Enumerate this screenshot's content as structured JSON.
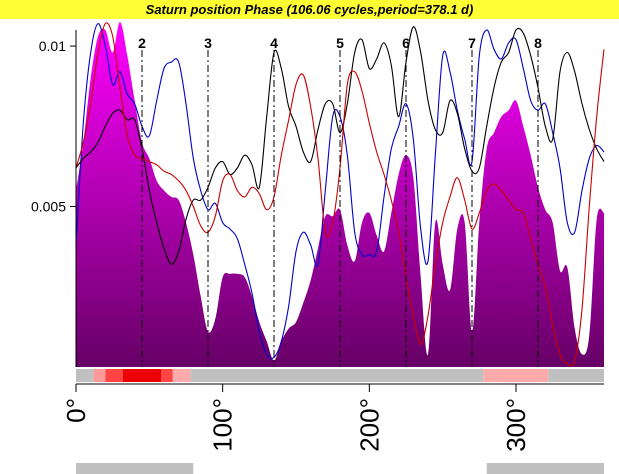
{
  "chart_data": {
    "type": "area",
    "title": "Saturn position  Phase  (106.06 cycles,period=378.1 d)",
    "xlabel": "",
    "ylabel": "",
    "xlim": [
      0,
      360
    ],
    "ylim": [
      0,
      0.0105
    ],
    "yticks": [
      {
        "value": 0.005,
        "label": "0.005"
      },
      {
        "value": 0.01,
        "label": "0.01"
      }
    ],
    "xticks": [
      {
        "value": 0,
        "label": "0°"
      },
      {
        "value": 100,
        "label": "100°"
      },
      {
        "value": 200,
        "label": "200°"
      },
      {
        "value": 300,
        "label": "300°"
      }
    ],
    "markers": [
      {
        "label": "2",
        "x": 45
      },
      {
        "label": "3",
        "x": 90
      },
      {
        "label": "4",
        "x": 135
      },
      {
        "label": "5",
        "x": 180
      },
      {
        "label": "6",
        "x": 225
      },
      {
        "label": "7",
        "x": 270
      },
      {
        "label": "8",
        "x": 315
      }
    ],
    "x": [
      0,
      5,
      10,
      15,
      20,
      25,
      30,
      35,
      40,
      45,
      50,
      55,
      60,
      65,
      70,
      75,
      80,
      85,
      90,
      95,
      100,
      105,
      110,
      115,
      120,
      125,
      130,
      135,
      140,
      145,
      150,
      155,
      160,
      165,
      170,
      175,
      180,
      185,
      190,
      195,
      200,
      205,
      210,
      215,
      220,
      225,
      230,
      235,
      240,
      245,
      250,
      255,
      260,
      265,
      270,
      275,
      280,
      285,
      290,
      295,
      300,
      305,
      310,
      315,
      320,
      325,
      330,
      335,
      340,
      345,
      350,
      355,
      360
    ],
    "series": [
      {
        "style": "filled-area",
        "values": [
          0.0055,
          0.007,
          0.009,
          0.0103,
          0.0105,
          0.0098,
          0.0112,
          0.0097,
          0.0083,
          0.007,
          0.0065,
          0.0058,
          0.0055,
          0.0053,
          0.0052,
          0.0045,
          0.0035,
          0.0022,
          0.0011,
          0.0015,
          0.0028,
          0.0029,
          0.0029,
          0.0028,
          0.0022,
          0.0014,
          0.0008,
          0.0002,
          0.0008,
          0.0012,
          0.0014,
          0.002,
          0.0027,
          0.0037,
          0.0047,
          0.0047,
          0.0049,
          0.0038,
          0.0033,
          0.0045,
          0.0048,
          0.0041,
          0.0036,
          0.0048,
          0.006,
          0.0066,
          0.0059,
          0.0028,
          0.0004,
          0.0045,
          0.0032,
          0.0024,
          0.0043,
          0.0045,
          0.0011,
          0.0045,
          0.0068,
          0.0073,
          0.0078,
          0.008,
          0.0083,
          0.0075,
          0.0066,
          0.0056,
          0.0049,
          0.0045,
          0.003,
          0.0031,
          0.0012,
          0.0004,
          0.001,
          0.0046,
          0.0048
        ]
      },
      {
        "style": "line",
        "color": "#0000cc",
        "values": [
          0.0038,
          0.0076,
          0.0098,
          0.0107,
          0.01,
          0.0088,
          0.0092,
          0.0085,
          0.0082,
          0.0075,
          0.0072,
          0.0083,
          0.0093,
          0.0095,
          0.0095,
          0.0082,
          0.0065,
          0.0055,
          0.0049,
          0.0051,
          0.0045,
          0.0043,
          0.004,
          0.0032,
          0.0023,
          0.0011,
          0.0004,
          0.0003,
          0.0008,
          0.0019,
          0.0036,
          0.0042,
          0.0038,
          0.0032,
          0.0055,
          0.0078,
          0.0078,
          0.0066,
          0.0042,
          0.0035,
          0.0035,
          0.0036,
          0.0053,
          0.0068,
          0.0075,
          0.0082,
          0.0071,
          0.0043,
          0.0033,
          0.0066,
          0.0097,
          0.0092,
          0.008,
          0.0071,
          0.0064,
          0.0097,
          0.0105,
          0.0099,
          0.0096,
          0.0101,
          0.0102,
          0.0093,
          0.0083,
          0.008,
          0.0082,
          0.0073,
          0.0062,
          0.0045,
          0.0042,
          0.0055,
          0.0065,
          0.0069,
          0.0067
        ]
      },
      {
        "style": "line",
        "color": "#000000",
        "values": [
          0.0062,
          0.0065,
          0.0067,
          0.007,
          0.0075,
          0.0079,
          0.008,
          0.0077,
          0.0077,
          0.0068,
          0.0055,
          0.0045,
          0.0037,
          0.0032,
          0.0036,
          0.0046,
          0.0052,
          0.0052,
          0.0056,
          0.0062,
          0.0064,
          0.006,
          0.0062,
          0.0066,
          0.0063,
          0.0056,
          0.0078,
          0.0098,
          0.0093,
          0.0081,
          0.0075,
          0.0067,
          0.0064,
          0.0074,
          0.0082,
          0.0082,
          0.0073,
          0.0082,
          0.0098,
          0.0102,
          0.0093,
          0.0096,
          0.0101,
          0.0094,
          0.0078,
          0.0095,
          0.0106,
          0.0098,
          0.0083,
          0.0074,
          0.0073,
          0.0083,
          0.0079,
          0.0068,
          0.0061,
          0.0062,
          0.0075,
          0.0087,
          0.0095,
          0.0098,
          0.0105,
          0.0104,
          0.0097,
          0.0087,
          0.0075,
          0.0071,
          0.0092,
          0.0098,
          0.0092,
          0.0082,
          0.0074,
          0.0068,
          0.0064
        ]
      },
      {
        "style": "line",
        "color": "#cc0000",
        "values": [
          0.0062,
          0.007,
          0.0082,
          0.0098,
          0.0107,
          0.0103,
          0.0087,
          0.0072,
          0.0066,
          0.0065,
          0.0064,
          0.0063,
          0.0061,
          0.006,
          0.0058,
          0.0055,
          0.005,
          0.0044,
          0.0042,
          0.0047,
          0.0058,
          0.006,
          0.0055,
          0.0053,
          0.0056,
          0.0054,
          0.0049,
          0.0053,
          0.0066,
          0.0077,
          0.0088,
          0.0091,
          0.0081,
          0.0065,
          0.0042,
          0.0045,
          0.0062,
          0.0088,
          0.0092,
          0.0086,
          0.0076,
          0.0067,
          0.006,
          0.0052,
          0.0042,
          0.0028,
          0.0016,
          0.0007,
          0.0016,
          0.0032,
          0.0045,
          0.0053,
          0.0059,
          0.0052,
          0.0043,
          0.0048,
          0.0055,
          0.0057,
          0.0055,
          0.0052,
          0.0049,
          0.0048,
          0.004,
          0.0032,
          0.0025,
          0.0013,
          0.0004,
          0.0001,
          0.0002,
          0.0018,
          0.005,
          0.0078,
          0.0099
        ]
      }
    ],
    "color_strip": [
      {
        "from": 0,
        "to": 12,
        "color": "#c0c0c0"
      },
      {
        "from": 12,
        "to": 20,
        "color": "#ff9999"
      },
      {
        "from": 20,
        "to": 32,
        "color": "#ff4444"
      },
      {
        "from": 32,
        "to": 58,
        "color": "#ee0000"
      },
      {
        "from": 58,
        "to": 66,
        "color": "#ff4444"
      },
      {
        "from": 66,
        "to": 78,
        "color": "#ffaaaa"
      },
      {
        "from": 78,
        "to": 278,
        "color": "#c0c0c0"
      },
      {
        "from": 278,
        "to": 322,
        "color": "#ffaaaa"
      },
      {
        "from": 322,
        "to": 360,
        "color": "#c0c0c0"
      }
    ],
    "gradient": {
      "top": "#ff00ff",
      "bottom": "#660066"
    },
    "bottom_bars": [
      {
        "from": 0,
        "to": 80,
        "color": "#c0c0c0"
      },
      {
        "from": 280,
        "to": 360,
        "color": "#c0c0c0"
      }
    ],
    "grid": false,
    "legend": "none"
  }
}
